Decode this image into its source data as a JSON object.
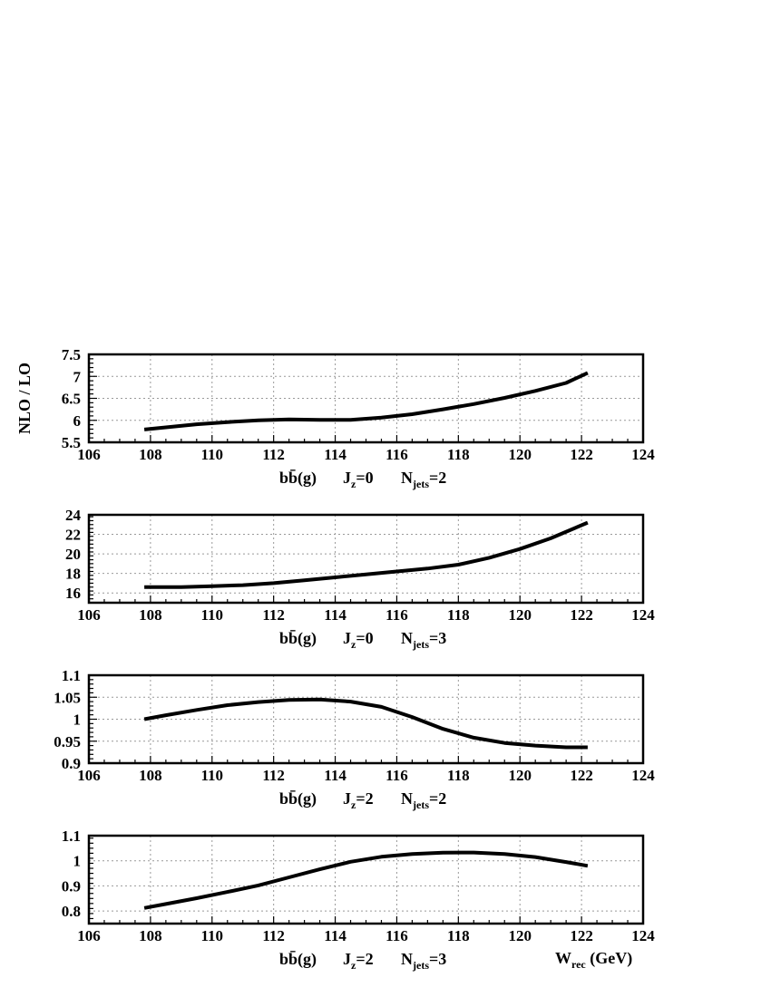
{
  "chart_data": [
    {
      "type": "line",
      "ylabel": "NLO / LO",
      "xlabel": "",
      "caption": {
        "process": "bb̄(g)",
        "jz_value": "0",
        "njets_value": "2"
      },
      "xlim": [
        106,
        124
      ],
      "ylim": [
        5.5,
        7.5
      ],
      "xticks": [
        106,
        108,
        110,
        112,
        114,
        116,
        118,
        120,
        122,
        124
      ],
      "yticks": [
        5.5,
        6,
        6.5,
        7,
        7.5
      ],
      "series": [
        {
          "x": [
            107.8,
            108.5,
            109.5,
            110.5,
            111.5,
            112.5,
            113.5,
            114.5,
            115.5,
            116.5,
            117.5,
            118.5,
            119.5,
            120.5,
            121.5,
            122.2
          ],
          "values": [
            5.79,
            5.84,
            5.91,
            5.96,
            6.0,
            6.02,
            6.01,
            6.01,
            6.06,
            6.14,
            6.25,
            6.37,
            6.51,
            6.67,
            6.85,
            7.08
          ]
        }
      ],
      "grid": true
    },
    {
      "type": "line",
      "ylabel": "",
      "xlabel": "",
      "caption": {
        "process": "bb̄(g)",
        "jz_value": "0",
        "njets_value": "3"
      },
      "xlim": [
        106,
        124
      ],
      "ylim": [
        15,
        24
      ],
      "xticks": [
        106,
        108,
        110,
        112,
        114,
        116,
        118,
        120,
        122,
        124
      ],
      "yticks": [
        16,
        18,
        20,
        22,
        24
      ],
      "series": [
        {
          "x": [
            107.8,
            109,
            110,
            111,
            112,
            113,
            114,
            115,
            116,
            117,
            118,
            119,
            120,
            121,
            122.2
          ],
          "values": [
            16.6,
            16.6,
            16.7,
            16.8,
            17.0,
            17.3,
            17.6,
            17.9,
            18.2,
            18.5,
            18.9,
            19.6,
            20.5,
            21.6,
            23.2
          ]
        }
      ],
      "grid": true
    },
    {
      "type": "line",
      "ylabel": "",
      "xlabel": "",
      "caption": {
        "process": "bb̄(g)",
        "jz_value": "2",
        "njets_value": "2"
      },
      "xlim": [
        106,
        124
      ],
      "ylim": [
        0.9,
        1.1
      ],
      "xticks": [
        106,
        108,
        110,
        112,
        114,
        116,
        118,
        120,
        122,
        124
      ],
      "yticks": [
        0.9,
        0.95,
        1,
        1.05,
        1.1
      ],
      "series": [
        {
          "x": [
            107.8,
            108.5,
            109.5,
            110.5,
            111.5,
            112.5,
            113.5,
            114.5,
            115.5,
            116.5,
            117.5,
            118.5,
            119.5,
            120.5,
            121.5,
            122.2
          ],
          "values": [
            1.0,
            1.009,
            1.021,
            1.032,
            1.039,
            1.044,
            1.045,
            1.04,
            1.028,
            1.005,
            0.978,
            0.958,
            0.946,
            0.94,
            0.936,
            0.936
          ]
        }
      ],
      "grid": true
    },
    {
      "type": "line",
      "ylabel": "",
      "xlabel": "W_rec (GeV)",
      "xlabel_main": "W",
      "xlabel_sub": "rec",
      "xlabel_unit": "(GeV)",
      "caption": {
        "process": "bb̄(g)",
        "jz_value": "2",
        "njets_value": "3"
      },
      "xlim": [
        106,
        124
      ],
      "ylim": [
        0.75,
        1.1
      ],
      "xticks": [
        106,
        108,
        110,
        112,
        114,
        116,
        118,
        120,
        122,
        124
      ],
      "yticks": [
        0.8,
        0.9,
        1,
        1.1
      ],
      "series": [
        {
          "x": [
            107.8,
            108.5,
            109.5,
            110.5,
            111.5,
            112.5,
            113.5,
            114.5,
            115.5,
            116.5,
            117.5,
            118.5,
            119.5,
            120.5,
            121.5,
            122.2
          ],
          "values": [
            0.812,
            0.828,
            0.851,
            0.876,
            0.902,
            0.934,
            0.966,
            0.996,
            1.016,
            1.027,
            1.032,
            1.033,
            1.027,
            1.015,
            0.995,
            0.98
          ]
        }
      ],
      "grid": true
    }
  ]
}
